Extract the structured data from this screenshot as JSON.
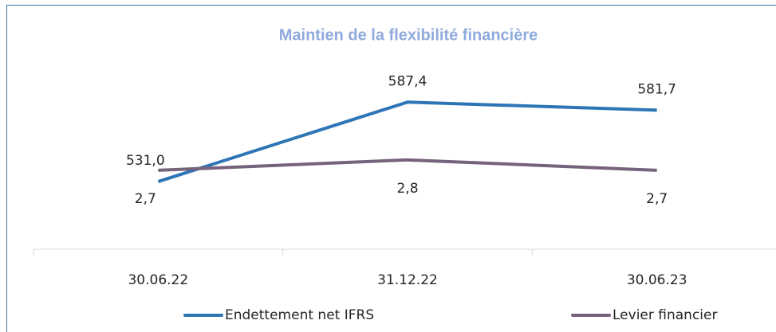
{
  "chart_data": {
    "type": "line",
    "title": "Maintien de la flexibilité financière",
    "categories": [
      "30.06.22",
      "31.12.22",
      "30.06.23"
    ],
    "series": [
      {
        "name": "Endettement net IFRS",
        "color": "#2e75b6",
        "values": [
          531.0,
          587.4,
          581.7
        ],
        "value_labels": [
          "531,0",
          "587,4",
          "581,7"
        ]
      },
      {
        "name": "Levier financier",
        "color": "#76627a",
        "axis": "y2",
        "values": [
          2.7,
          2.8,
          2.7
        ],
        "value_labels": [
          "2,7",
          "2,8",
          "2,7"
        ]
      }
    ],
    "ylim": [
      483,
      626
    ],
    "y2lim": [
      1.94,
      3.88
    ],
    "legend": "bottom"
  }
}
